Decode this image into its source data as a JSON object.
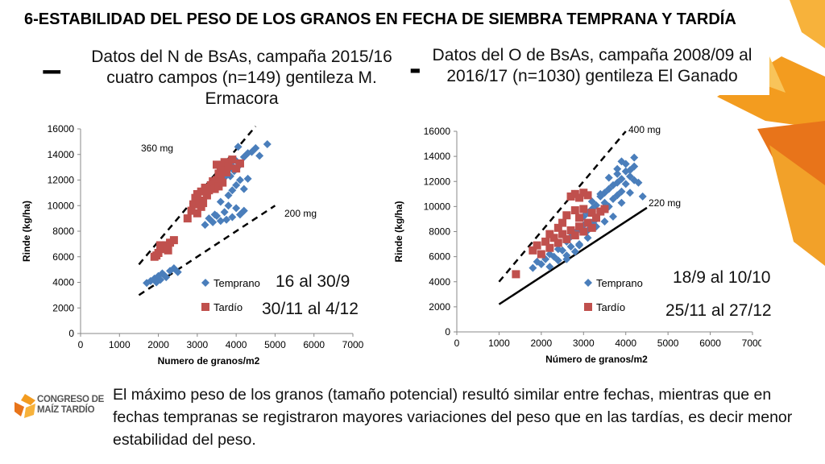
{
  "title": "6-ESTABILIDAD DEL PESO DE LOS GRANOS EN FECHA DE SIEMBRA TEMPRANA Y TARDÍA",
  "left_panel": {
    "subtitle": "Datos del N de BsAs, campaña 2015/16 cuatro campos (n=149) gentileza M. Ermacora",
    "date_early": "16 al 30/9",
    "date_late": "30/11 al 4/12"
  },
  "right_panel": {
    "subtitle": "Datos del O de BsAs, campaña 2008/09 al 2016/17 (n=1030) gentileza El Ganado",
    "date_early": "18/9 al 10/10",
    "date_late": "25/11 al 27/12"
  },
  "conclusion": "El máximo peso de los granos (tamaño potencial) resultó similar entre fechas, mientras que en fechas tempranas se registraron mayores variaciones del peso que en las tardías, es decir menor estabilidad del peso.",
  "logo": {
    "line1": "CONGRESO DE",
    "line2": "MAÍZ TARDÍO"
  },
  "colors": {
    "temprano": "#4a7ebb",
    "tardio": "#c0504d",
    "accent_orange": "#f39c1f"
  },
  "chart_data": [
    {
      "type": "scatter",
      "xlabel": "Numero de granos/m2",
      "ylabel": "Rinde (kg/ha)",
      "xlim": [
        0,
        7000
      ],
      "ylim": [
        0,
        16000
      ],
      "xticks": [
        "0",
        "1000",
        "2000",
        "3000",
        "4000",
        "5000",
        "6000",
        "7000"
      ],
      "yticks": [
        "0",
        "2000",
        "4000",
        "6000",
        "8000",
        "10000",
        "12000",
        "14000",
        "16000"
      ],
      "legend": [
        "Temprano",
        "Tardío"
      ],
      "reference_lines": [
        {
          "label": "360 mg",
          "style": "dashed",
          "x": [
            1500,
            4500
          ],
          "y": [
            5400,
            16200
          ]
        },
        {
          "label": "200 mg",
          "style": "dashed",
          "x": [
            1500,
            5000
          ],
          "y": [
            3000,
            10000
          ]
        }
      ],
      "series": [
        {
          "name": "Temprano",
          "points": [
            [
              1700,
              3950
            ],
            [
              1800,
              4100
            ],
            [
              1900,
              4300
            ],
            [
              2000,
              4500
            ],
            [
              2050,
              4200
            ],
            [
              2100,
              4700
            ],
            [
              2200,
              4400
            ],
            [
              2300,
              4900
            ],
            [
              2400,
              5100
            ],
            [
              2500,
              4800
            ],
            [
              2150,
              4550
            ],
            [
              1950,
              4000
            ],
            [
              3200,
              8500
            ],
            [
              3300,
              9000
            ],
            [
              3400,
              8700
            ],
            [
              3500,
              9200
            ],
            [
              3600,
              8800
            ],
            [
              3700,
              9500
            ],
            [
              3800,
              10000
            ],
            [
              3900,
              9100
            ],
            [
              4000,
              9800
            ],
            [
              4100,
              9300
            ],
            [
              4200,
              9600
            ],
            [
              3750,
              8900
            ],
            [
              3450,
              9300
            ],
            [
              3600,
              10300
            ],
            [
              3800,
              10800
            ],
            [
              3900,
              11200
            ],
            [
              4000,
              11600
            ],
            [
              4100,
              12000
            ],
            [
              4200,
              11300
            ],
            [
              4300,
              12100
            ],
            [
              3850,
              12300
            ],
            [
              3700,
              12200
            ],
            [
              3800,
              12800
            ],
            [
              3900,
              13100
            ],
            [
              4000,
              13500
            ],
            [
              4100,
              13200
            ],
            [
              4200,
              13800
            ],
            [
              4300,
              14100
            ],
            [
              4400,
              14200
            ],
            [
              4500,
              14500
            ],
            [
              4600,
              13900
            ],
            [
              4800,
              14800
            ],
            [
              4050,
              14600
            ],
            [
              3950,
              12700
            ]
          ]
        },
        {
          "name": "Tardío",
          "points": [
            [
              1900,
              6000
            ],
            [
              2000,
              6300
            ],
            [
              2100,
              6600
            ],
            [
              2200,
              6900
            ],
            [
              2300,
              7100
            ],
            [
              2400,
              7300
            ],
            [
              2050,
              6900
            ],
            [
              2250,
              6500
            ],
            [
              1950,
              6100
            ],
            [
              2750,
              9000
            ],
            [
              2850,
              9600
            ],
            [
              2900,
              10100
            ],
            [
              2950,
              10600
            ],
            [
              3000,
              10900
            ],
            [
              3050,
              10400
            ],
            [
              3100,
              11100
            ],
            [
              3150,
              10200
            ],
            [
              3200,
              11400
            ],
            [
              3250,
              10800
            ],
            [
              3300,
              11200
            ],
            [
              3350,
              11600
            ],
            [
              3400,
              11900
            ],
            [
              3450,
              11300
            ],
            [
              3500,
              12000
            ],
            [
              3550,
              11500
            ],
            [
              3600,
              12300
            ],
            [
              3650,
              11800
            ],
            [
              3700,
              12700
            ],
            [
              3000,
              9400
            ],
            [
              3100,
              9900
            ],
            [
              3500,
              13200
            ],
            [
              3600,
              13000
            ],
            [
              3700,
              13400
            ],
            [
              3750,
              12600
            ],
            [
              3800,
              13100
            ],
            [
              3900,
              13600
            ],
            [
              4000,
              12900
            ],
            [
              4100,
              13300
            ],
            [
              3550,
              12500
            ]
          ]
        }
      ]
    },
    {
      "type": "scatter",
      "xlabel": "Número de granos/m2",
      "ylabel": "Rinde (kg/ha)",
      "xlim": [
        0,
        7000
      ],
      "ylim": [
        0,
        16000
      ],
      "xticks": [
        "0",
        "1000",
        "2000",
        "3000",
        "4000",
        "5000",
        "6000",
        "7000"
      ],
      "yticks": [
        "0",
        "2000",
        "4000",
        "6000",
        "8000",
        "10000",
        "12000",
        "14000",
        "16000"
      ],
      "legend": [
        "Temprano",
        "Tardío"
      ],
      "reference_lines": [
        {
          "label": "400 mg",
          "style": "dashed",
          "x": [
            1000,
            4000
          ],
          "y": [
            4000,
            16000
          ]
        },
        {
          "label": "220 mg",
          "style": "solid",
          "x": [
            1000,
            4500
          ],
          "y": [
            2200,
            9900
          ]
        }
      ],
      "series": [
        {
          "name": "Temprano",
          "points": [
            [
              1800,
              5100
            ],
            [
              1900,
              5600
            ],
            [
              2000,
              5400
            ],
            [
              2100,
              5800
            ],
            [
              2200,
              5200
            ],
            [
              2300,
              6000
            ],
            [
              2400,
              5700
            ],
            [
              2200,
              6200
            ],
            [
              2500,
              6500
            ],
            [
              2600,
              6100
            ],
            [
              2700,
              6800
            ],
            [
              2800,
              6400
            ],
            [
              2900,
              7000
            ],
            [
              2600,
              7200
            ],
            [
              2700,
              7600
            ],
            [
              2800,
              7900
            ],
            [
              2900,
              8200
            ],
            [
              3000,
              8500
            ],
            [
              3100,
              8100
            ],
            [
              3200,
              8700
            ],
            [
              3300,
              9000
            ],
            [
              3000,
              9200
            ],
            [
              3100,
              9500
            ],
            [
              3200,
              9800
            ],
            [
              3300,
              10100
            ],
            [
              3400,
              9600
            ],
            [
              3500,
              10300
            ],
            [
              3600,
              10000
            ],
            [
              3700,
              10600
            ],
            [
              3800,
              10900
            ],
            [
              3900,
              11200
            ],
            [
              3400,
              10800
            ],
            [
              3500,
              11100
            ],
            [
              3600,
              11400
            ],
            [
              3700,
              11700
            ],
            [
              3800,
              11900
            ],
            [
              3900,
              12200
            ],
            [
              4000,
              11800
            ],
            [
              4100,
              12400
            ],
            [
              4200,
              12100
            ],
            [
              4300,
              11900
            ],
            [
              4400,
              10800
            ],
            [
              3600,
              12300
            ],
            [
              3800,
              12600
            ],
            [
              4000,
              12800
            ],
            [
              4200,
              13200
            ],
            [
              3800,
              13000
            ],
            [
              4000,
              13400
            ],
            [
              4100,
              12900
            ],
            [
              4200,
              13900
            ],
            [
              3900,
              13600
            ],
            [
              3700,
              9200
            ],
            [
              3500,
              8800
            ],
            [
              3300,
              8400
            ],
            [
              3100,
              7500
            ],
            [
              2900,
              6900
            ],
            [
              3200,
              10400
            ],
            [
              3400,
              11000
            ],
            [
              3900,
              10300
            ],
            [
              4100,
              11100
            ],
            [
              2400,
              6600
            ],
            [
              2600,
              5800
            ]
          ]
        },
        {
          "name": "Tardío",
          "points": [
            [
              1400,
              4600
            ],
            [
              1800,
              6500
            ],
            [
              1900,
              6900
            ],
            [
              2000,
              6200
            ],
            [
              2100,
              7200
            ],
            [
              2200,
              6700
            ],
            [
              2300,
              7500
            ],
            [
              2400,
              7100
            ],
            [
              2500,
              7800
            ],
            [
              2600,
              7400
            ],
            [
              2700,
              8100
            ],
            [
              2800,
              7700
            ],
            [
              2900,
              8400
            ],
            [
              3000,
              8000
            ],
            [
              3100,
              8700
            ],
            [
              3200,
              8300
            ],
            [
              3300,
              9100
            ],
            [
              2500,
              8700
            ],
            [
              2600,
              9300
            ],
            [
              2800,
              9700
            ],
            [
              2900,
              9100
            ],
            [
              3000,
              9800
            ],
            [
              2200,
              7800
            ],
            [
              2400,
              8300
            ],
            [
              2700,
              10800
            ],
            [
              2800,
              11000
            ],
            [
              2900,
              10700
            ],
            [
              3000,
              11100
            ],
            [
              3100,
              10900
            ],
            [
              3200,
              9500
            ],
            [
              3400,
              9600
            ],
            [
              3500,
              9800
            ]
          ]
        }
      ]
    }
  ]
}
